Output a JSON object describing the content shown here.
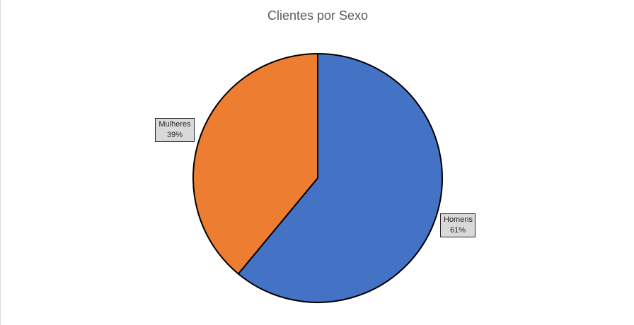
{
  "chart_data": {
    "type": "pie",
    "title": "Clientes por Sexo",
    "categories": [
      "Homens",
      "Mulheres"
    ],
    "values": [
      61,
      39
    ],
    "value_labels": [
      "61%",
      "39%"
    ],
    "colors": [
      "#4472C4",
      "#ED7D31"
    ],
    "legend": "none"
  }
}
